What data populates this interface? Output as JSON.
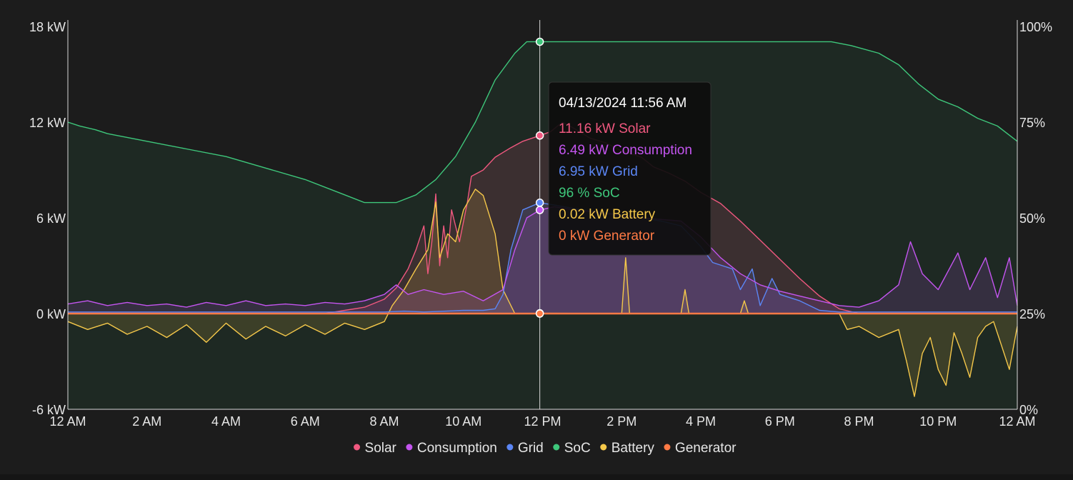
{
  "chart_data": {
    "type": "area",
    "x_ticks": [
      "12 AM",
      "2 AM",
      "4 AM",
      "6 AM",
      "8 AM",
      "10 AM",
      "12 PM",
      "2 PM",
      "4 PM",
      "6 PM",
      "8 PM",
      "10 PM",
      "12 AM"
    ],
    "y_left": {
      "ticks": [
        "18 kW",
        "12 kW",
        "6 kW",
        "0 kW",
        "-6 kW"
      ],
      "range": [
        -6,
        18
      ]
    },
    "y_right": {
      "ticks": [
        "100%",
        "75%",
        "50%",
        "25%",
        "0%"
      ],
      "range": [
        0,
        100
      ]
    },
    "cursor_hour": 11.93,
    "tooltip": {
      "time": "04/13/2024 11:56 AM",
      "lines": [
        {
          "series": "Solar",
          "text": "11.16 kW Solar"
        },
        {
          "series": "Consumption",
          "text": "6.49 kW Consumption"
        },
        {
          "series": "Grid",
          "text": "6.95 kW Grid"
        },
        {
          "series": "SoC",
          "text": "96 % SoC"
        },
        {
          "series": "Battery",
          "text": "0.02 kW Battery"
        },
        {
          "series": "Generator",
          "text": "0 kW Generator"
        }
      ]
    },
    "series": [
      {
        "name": "Solar",
        "color": "#f0587f",
        "axis": "left",
        "points": [
          [
            0,
            0
          ],
          [
            6.5,
            0
          ],
          [
            7,
            0.2
          ],
          [
            7.5,
            0.4
          ],
          [
            8,
            0.9
          ],
          [
            8.3,
            1.6
          ],
          [
            8.6,
            2.8
          ],
          [
            8.8,
            4
          ],
          [
            9.0,
            5.5
          ],
          [
            9.1,
            2.5
          ],
          [
            9.2,
            4.5
          ],
          [
            9.3,
            7.5
          ],
          [
            9.4,
            3
          ],
          [
            9.5,
            5.5
          ],
          [
            9.6,
            3.5
          ],
          [
            9.7,
            6.5
          ],
          [
            9.9,
            4.5
          ],
          [
            10.1,
            7
          ],
          [
            10.2,
            8.6
          ],
          [
            10.5,
            9
          ],
          [
            10.8,
            9.8
          ],
          [
            11.2,
            10.4
          ],
          [
            11.5,
            10.8
          ],
          [
            11.93,
            11.16
          ],
          [
            12.2,
            11.4
          ],
          [
            12.5,
            12
          ],
          [
            12.8,
            11.6
          ],
          [
            13.2,
            11
          ],
          [
            13.6,
            10.7
          ],
          [
            14,
            10.2
          ],
          [
            14.5,
            9.8
          ],
          [
            14.8,
            9.2
          ],
          [
            15.2,
            8.8
          ],
          [
            15.6,
            8.3
          ],
          [
            16,
            7.6
          ],
          [
            16.5,
            6.9
          ],
          [
            17,
            5.8
          ],
          [
            17.5,
            4.6
          ],
          [
            18,
            3.4
          ],
          [
            18.5,
            2.2
          ],
          [
            19,
            1.1
          ],
          [
            19.5,
            0.3
          ],
          [
            20,
            0
          ],
          [
            24,
            0
          ]
        ]
      },
      {
        "name": "Consumption",
        "color": "#c455f0",
        "axis": "left",
        "points": [
          [
            0,
            0.6
          ],
          [
            0.5,
            0.8
          ],
          [
            1,
            0.5
          ],
          [
            1.5,
            0.7
          ],
          [
            2,
            0.5
          ],
          [
            2.5,
            0.6
          ],
          [
            3,
            0.4
          ],
          [
            3.5,
            0.7
          ],
          [
            4,
            0.5
          ],
          [
            4.5,
            0.8
          ],
          [
            5,
            0.5
          ],
          [
            5.5,
            0.6
          ],
          [
            6,
            0.5
          ],
          [
            6.5,
            0.7
          ],
          [
            7,
            0.6
          ],
          [
            7.5,
            0.8
          ],
          [
            8,
            1.2
          ],
          [
            8.3,
            1.8
          ],
          [
            8.6,
            1.2
          ],
          [
            9,
            1.5
          ],
          [
            9.5,
            1.2
          ],
          [
            10,
            1.4
          ],
          [
            10.5,
            0.8
          ],
          [
            11,
            1.5
          ],
          [
            11.3,
            4
          ],
          [
            11.6,
            6
          ],
          [
            11.93,
            6.49
          ],
          [
            12.3,
            6.7
          ],
          [
            12.8,
            6.5
          ],
          [
            13.5,
            6.3
          ],
          [
            14.5,
            6
          ],
          [
            15.5,
            5.8
          ],
          [
            16,
            4.8
          ],
          [
            16.5,
            3.5
          ],
          [
            17,
            2.5
          ],
          [
            17.5,
            1.8
          ],
          [
            18,
            1.4
          ],
          [
            18.5,
            1.1
          ],
          [
            19,
            0.8
          ],
          [
            19.5,
            0.5
          ],
          [
            20,
            0.4
          ],
          [
            20.5,
            0.8
          ],
          [
            21,
            1.8
          ],
          [
            21.3,
            4.5
          ],
          [
            21.6,
            2.5
          ],
          [
            22,
            1.5
          ],
          [
            22.5,
            3.8
          ],
          [
            22.8,
            1.5
          ],
          [
            23.2,
            3.5
          ],
          [
            23.5,
            1
          ],
          [
            23.8,
            3.5
          ],
          [
            24,
            0.5
          ]
        ]
      },
      {
        "name": "Grid",
        "color": "#5b86f5",
        "axis": "left",
        "points": [
          [
            0,
            0.1
          ],
          [
            8,
            0.1
          ],
          [
            8.5,
            0.15
          ],
          [
            9,
            0.1
          ],
          [
            10,
            0.2
          ],
          [
            10.5,
            0.2
          ],
          [
            10.8,
            0.3
          ],
          [
            11,
            1.2
          ],
          [
            11.2,
            4
          ],
          [
            11.5,
            6.5
          ],
          [
            11.93,
            6.95
          ],
          [
            12.3,
            6.8
          ],
          [
            13,
            6.5
          ],
          [
            14,
            6.2
          ],
          [
            15,
            5.8
          ],
          [
            15.5,
            5.5
          ],
          [
            16,
            4.2
          ],
          [
            16.3,
            3.2
          ],
          [
            16.8,
            2.8
          ],
          [
            17,
            1.5
          ],
          [
            17.3,
            2.8
          ],
          [
            17.5,
            0.5
          ],
          [
            17.8,
            2.2
          ],
          [
            18,
            1.2
          ],
          [
            18.5,
            0.8
          ],
          [
            19,
            0.2
          ],
          [
            19.5,
            0.1
          ],
          [
            24,
            0.1
          ]
        ]
      },
      {
        "name": "SoC",
        "color": "#3ec77b",
        "axis": "right",
        "points": [
          [
            0,
            75
          ],
          [
            0.3,
            74
          ],
          [
            0.7,
            73
          ],
          [
            1,
            72
          ],
          [
            1.5,
            71
          ],
          [
            2,
            70
          ],
          [
            3,
            68
          ],
          [
            4,
            66
          ],
          [
            5,
            63
          ],
          [
            6,
            60
          ],
          [
            7,
            56
          ],
          [
            7.5,
            54
          ],
          [
            8.3,
            54
          ],
          [
            8.8,
            56
          ],
          [
            9.3,
            60
          ],
          [
            9.8,
            66
          ],
          [
            10.3,
            75
          ],
          [
            10.8,
            86
          ],
          [
            11.3,
            93
          ],
          [
            11.6,
            96
          ],
          [
            11.93,
            96
          ],
          [
            12.5,
            96
          ],
          [
            14,
            96
          ],
          [
            16,
            96
          ],
          [
            18,
            96
          ],
          [
            19.3,
            96
          ],
          [
            19.8,
            95
          ],
          [
            20.5,
            93
          ],
          [
            21,
            90
          ],
          [
            21.5,
            85
          ],
          [
            22,
            81
          ],
          [
            22.5,
            79
          ],
          [
            23,
            76
          ],
          [
            23.5,
            74
          ],
          [
            24,
            70
          ]
        ]
      },
      {
        "name": "Battery",
        "color": "#f5c84a",
        "axis": "left",
        "points": [
          [
            0,
            -0.5
          ],
          [
            0.5,
            -1
          ],
          [
            1,
            -0.6
          ],
          [
            1.5,
            -1.3
          ],
          [
            2,
            -0.8
          ],
          [
            2.5,
            -1.5
          ],
          [
            3,
            -0.7
          ],
          [
            3.5,
            -1.8
          ],
          [
            4,
            -0.6
          ],
          [
            4.5,
            -1.6
          ],
          [
            5,
            -0.8
          ],
          [
            5.5,
            -1.4
          ],
          [
            6,
            -0.7
          ],
          [
            6.5,
            -1.3
          ],
          [
            7,
            -0.6
          ],
          [
            7.5,
            -1.0
          ],
          [
            8,
            -0.5
          ],
          [
            8.2,
            0.5
          ],
          [
            8.5,
            1.5
          ],
          [
            8.8,
            2.8
          ],
          [
            9.1,
            4
          ],
          [
            9.3,
            7
          ],
          [
            9.4,
            3.5
          ],
          [
            9.6,
            5
          ],
          [
            9.8,
            4.5
          ],
          [
            10,
            6.5
          ],
          [
            10.3,
            7.8
          ],
          [
            10.5,
            7.4
          ],
          [
            10.8,
            5
          ],
          [
            11.0,
            1.5
          ],
          [
            11.3,
            0
          ],
          [
            11.93,
            0.02
          ],
          [
            14,
            0
          ],
          [
            14.1,
            3.5
          ],
          [
            14.2,
            0
          ],
          [
            15.5,
            0
          ],
          [
            15.6,
            1.5
          ],
          [
            15.7,
            0
          ],
          [
            17,
            0
          ],
          [
            17.1,
            0.8
          ],
          [
            17.2,
            0
          ],
          [
            19.5,
            0
          ],
          [
            19.7,
            -1
          ],
          [
            20,
            -0.8
          ],
          [
            20.5,
            -1.5
          ],
          [
            21,
            -1
          ],
          [
            21.2,
            -3
          ],
          [
            21.4,
            -5.2
          ],
          [
            21.6,
            -2.5
          ],
          [
            21.8,
            -1.5
          ],
          [
            22,
            -3.5
          ],
          [
            22.2,
            -4.5
          ],
          [
            22.4,
            -1.2
          ],
          [
            22.6,
            -2.5
          ],
          [
            22.8,
            -4
          ],
          [
            23,
            -1.5
          ],
          [
            23.2,
            -0.8
          ],
          [
            23.4,
            -0.5
          ],
          [
            23.6,
            -2
          ],
          [
            23.8,
            -3.5
          ],
          [
            24,
            -0.8
          ]
        ]
      },
      {
        "name": "Generator",
        "color": "#ff7a45",
        "axis": "left",
        "points": [
          [
            0,
            0
          ],
          [
            24,
            0
          ]
        ]
      }
    ]
  }
}
